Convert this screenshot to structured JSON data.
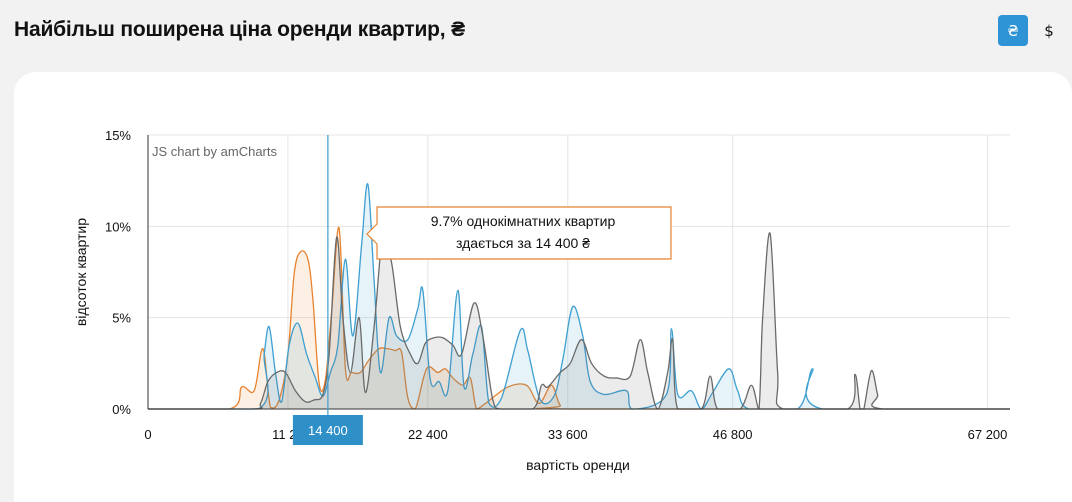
{
  "header": {
    "title": "Найбільш поширена ціна оренди квартир, ₴"
  },
  "currency": {
    "options": [
      "₴",
      "$"
    ],
    "selected": "₴"
  },
  "chart_data": {
    "type": "area",
    "credit": "JS chart by amCharts",
    "xlabel": "вартість оренди",
    "ylabel": "відсоток квартир",
    "xlim": [
      0,
      69000
    ],
    "ylim": [
      0,
      15
    ],
    "x_ticks": [
      "0",
      "11 20",
      "22 400",
      "33 600",
      "46 800",
      "67 200"
    ],
    "y_ticks": [
      "0%",
      "5%",
      "10%",
      "15%"
    ],
    "cursor": {
      "x": 14400,
      "label": "14 400"
    },
    "tooltip": {
      "lines": [
        "9.7% однокімнатних квартир",
        "здається за 14 400 ₴"
      ]
    },
    "series": [
      {
        "color": "#e8832e",
        "points": [
          [
            0,
            0
          ],
          [
            6500,
            0
          ],
          [
            7500,
            1.2
          ],
          [
            8500,
            1.0
          ],
          [
            9200,
            3.3
          ],
          [
            9800,
            0.1
          ],
          [
            10500,
            0.5
          ],
          [
            11200,
            3.0
          ],
          [
            11700,
            7.4
          ],
          [
            12200,
            8.6
          ],
          [
            12800,
            8.2
          ],
          [
            13200,
            6.0
          ],
          [
            13700,
            1.4
          ],
          [
            14200,
            1.6
          ],
          [
            14700,
            5.3
          ],
          [
            15300,
            9.9
          ],
          [
            15800,
            2.2
          ],
          [
            16300,
            2.0
          ],
          [
            17000,
            2.0
          ],
          [
            17700,
            2.7
          ],
          [
            18500,
            3.3
          ],
          [
            19200,
            3.3
          ],
          [
            19800,
            3.2
          ],
          [
            20300,
            3.1
          ],
          [
            20800,
            0.6
          ],
          [
            21400,
            0
          ],
          [
            22300,
            2.2
          ],
          [
            23200,
            2.0
          ],
          [
            23800,
            2.2
          ],
          [
            24400,
            1.7
          ],
          [
            25200,
            1.3
          ],
          [
            25800,
            1.7
          ],
          [
            26300,
            0
          ],
          [
            27000,
            0.3
          ],
          [
            28800,
            1.2
          ],
          [
            30300,
            1.3
          ],
          [
            31300,
            0.3
          ],
          [
            32300,
            1.3
          ],
          [
            33000,
            0.2
          ],
          [
            34000,
            0
          ],
          [
            69000,
            0
          ]
        ]
      },
      {
        "color": "#3e9fd1",
        "points": [
          [
            0,
            0
          ],
          [
            8800,
            0
          ],
          [
            9300,
            3.0
          ],
          [
            9700,
            4.5
          ],
          [
            10200,
            2.0
          ],
          [
            10700,
            0.4
          ],
          [
            11300,
            3.5
          ],
          [
            12000,
            4.7
          ],
          [
            12700,
            3.0
          ],
          [
            13400,
            1.7
          ],
          [
            14000,
            0.7
          ],
          [
            14600,
            2.0
          ],
          [
            15200,
            3.5
          ],
          [
            15800,
            8.2
          ],
          [
            16400,
            4.0
          ],
          [
            17100,
            9.0
          ],
          [
            17600,
            12.3
          ],
          [
            18100,
            7.0
          ],
          [
            18600,
            2.0
          ],
          [
            19300,
            5.0
          ],
          [
            19900,
            4.0
          ],
          [
            20800,
            3.8
          ],
          [
            21600,
            5.5
          ],
          [
            22000,
            6.5
          ],
          [
            22600,
            1.6
          ],
          [
            23300,
            1.5
          ],
          [
            24000,
            1.0
          ],
          [
            24800,
            6.5
          ],
          [
            25300,
            1.2
          ],
          [
            26000,
            3.0
          ],
          [
            26700,
            4.5
          ],
          [
            27300,
            0.3
          ],
          [
            28300,
            0.6
          ],
          [
            29800,
            4.3
          ],
          [
            30400,
            3.2
          ],
          [
            31400,
            0.5
          ],
          [
            32500,
            0.7
          ],
          [
            33200,
            2.7
          ],
          [
            34000,
            5.6
          ],
          [
            34800,
            4.0
          ],
          [
            35400,
            1.5
          ],
          [
            36500,
            0.8
          ],
          [
            38300,
            1.0
          ],
          [
            38800,
            0
          ],
          [
            41500,
            0.8
          ],
          [
            41900,
            4.4
          ],
          [
            42400,
            0.8
          ],
          [
            43500,
            1.0
          ],
          [
            44300,
            0
          ],
          [
            45200,
            0.9
          ],
          [
            46500,
            2.2
          ],
          [
            47200,
            1.0
          ],
          [
            48100,
            0
          ],
          [
            52000,
            0
          ],
          [
            53200,
            2.2
          ],
          [
            54000,
            0
          ],
          [
            69000,
            0
          ]
        ]
      },
      {
        "color": "#6a6a6a",
        "points": [
          [
            0,
            0
          ],
          [
            8300,
            0
          ],
          [
            9000,
            0.3
          ],
          [
            9600,
            1.5
          ],
          [
            10300,
            2.0
          ],
          [
            11000,
            2.0
          ],
          [
            11800,
            1.0
          ],
          [
            12600,
            0.4
          ],
          [
            13300,
            0.5
          ],
          [
            14000,
            0.8
          ],
          [
            14500,
            3.0
          ],
          [
            15100,
            9.4
          ],
          [
            15600,
            5.0
          ],
          [
            16200,
            2.0
          ],
          [
            16900,
            5.0
          ],
          [
            17400,
            0.9
          ],
          [
            18100,
            4.5
          ],
          [
            18800,
            9.5
          ],
          [
            19500,
            8.0
          ],
          [
            20200,
            4.5
          ],
          [
            21000,
            3.0
          ],
          [
            21600,
            2.5
          ],
          [
            22200,
            3.6
          ],
          [
            22900,
            3.9
          ],
          [
            23600,
            3.9
          ],
          [
            24400,
            3.5
          ],
          [
            25100,
            3.0
          ],
          [
            26100,
            5.8
          ],
          [
            26800,
            4.0
          ],
          [
            27600,
            0.5
          ],
          [
            28200,
            0
          ],
          [
            30800,
            0
          ],
          [
            31500,
            1.3
          ],
          [
            32000,
            1.2
          ],
          [
            33000,
            2.0
          ],
          [
            33800,
            2.5
          ],
          [
            34700,
            3.8
          ],
          [
            35500,
            2.5
          ],
          [
            36500,
            1.8
          ],
          [
            37500,
            1.7
          ],
          [
            38600,
            1.8
          ],
          [
            39400,
            3.8
          ],
          [
            40000,
            2.0
          ],
          [
            40800,
            0
          ],
          [
            41600,
            2.0
          ],
          [
            42000,
            3.8
          ],
          [
            42400,
            0
          ],
          [
            44300,
            0
          ],
          [
            45000,
            1.8
          ],
          [
            45600,
            0
          ],
          [
            47400,
            0
          ],
          [
            48300,
            1.3
          ],
          [
            48900,
            0
          ],
          [
            49200,
            5.0
          ],
          [
            49800,
            9.6
          ],
          [
            50400,
            2.0
          ],
          [
            50800,
            0
          ],
          [
            56000,
            0
          ],
          [
            56600,
            1.9
          ],
          [
            57000,
            0
          ],
          [
            57300,
            0
          ],
          [
            57900,
            2.1
          ],
          [
            58400,
            0.8
          ],
          [
            58800,
            0
          ],
          [
            69000,
            0
          ]
        ]
      }
    ]
  }
}
